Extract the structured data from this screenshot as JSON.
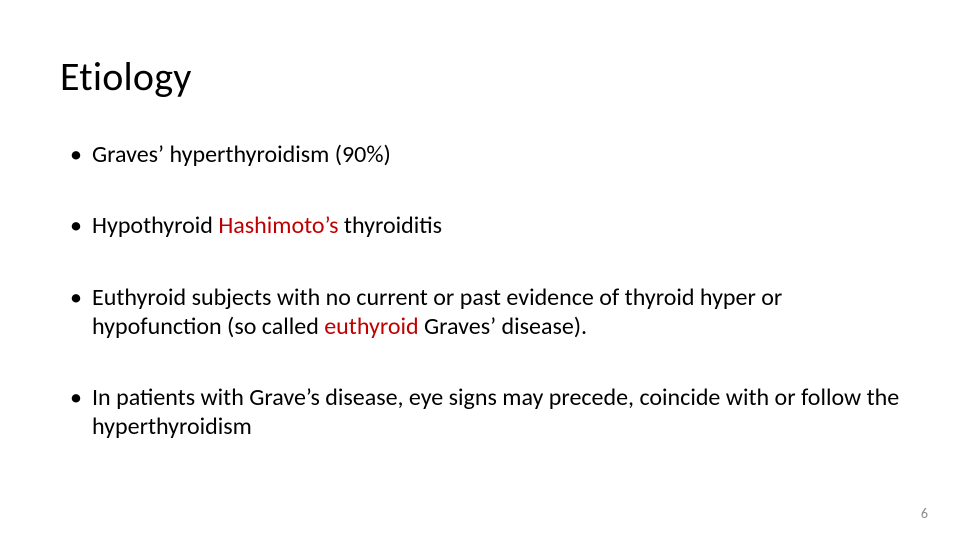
{
  "slide": {
    "title": "Etiology",
    "page_number": "6",
    "background_color": "#ffffff",
    "title_color": "#000000",
    "title_fontsize": 40,
    "bullet_fontsize": 24,
    "text_color": "#000000",
    "highlight_color": "#c00000",
    "pagenum_color": "#8a8a8a",
    "bullets": [
      {
        "runs": [
          {
            "text": "Graves’ hyperthyroidism (90%)",
            "highlight": false
          }
        ]
      },
      {
        "runs": [
          {
            "text": "Hypothyroid ",
            "highlight": false
          },
          {
            "text": "Hashimoto’s",
            "highlight": true
          },
          {
            "text": " thyroiditis",
            "highlight": false
          }
        ]
      },
      {
        "runs": [
          {
            "text": "Euthyroid subjects with no current or past evidence of thyroid hyper or hypofunction (so called ",
            "highlight": false
          },
          {
            "text": "euthyroid",
            "highlight": true
          },
          {
            "text": " Graves’ disease).",
            "highlight": false
          }
        ]
      },
      {
        "runs": [
          {
            "text": "In patients with Grave’s disease, eye signs may precede, coincide with or follow the hyperthyroidism",
            "highlight": false
          }
        ]
      }
    ]
  }
}
